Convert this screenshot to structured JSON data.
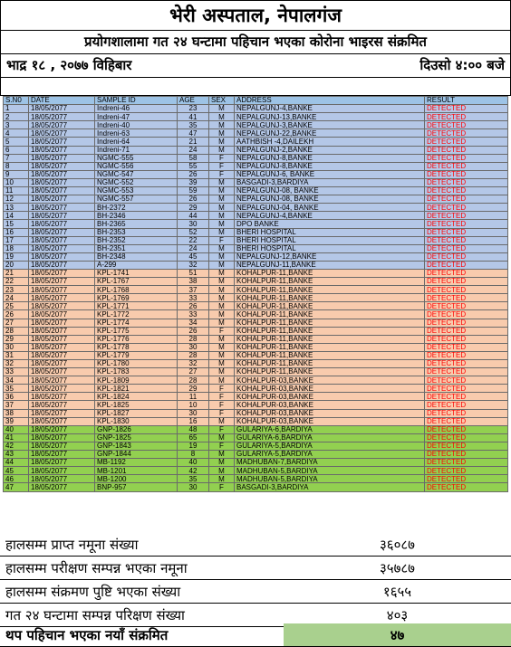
{
  "header": {
    "title": "भेरी अस्पताल, नेपालगंज",
    "subtitle": "प्रयोगशालामा गत २४ घन्टामा पहिचान भएका कोरोना भाइरस संक्रमित",
    "date": "भाद्र १८ , २०७७ विहिबार",
    "time": "दिउसो ४:०० बजे"
  },
  "table": {
    "columns": [
      "S.N0",
      "DATE",
      "SAMPLE ID",
      "AGE",
      "SEX",
      "ADDRESS",
      "RESULT"
    ],
    "rows": [
      [
        "1",
        "18/05/2077",
        "Indreni-46",
        "23",
        "M",
        "NEPALGUNJ-4,BANKE",
        "DETECTED",
        "blue"
      ],
      [
        "2",
        "18/05/2077",
        "Indreni-47",
        "41",
        "M",
        "NEPALGUNJ-13,BANKE",
        "DETECTED",
        "blue"
      ],
      [
        "3",
        "18/05/2077",
        "Indreni-40",
        "35",
        "M",
        "NEPALGUNJ-3,BANKE",
        "DETECTED",
        "blue"
      ],
      [
        "4",
        "18/05/2077",
        "Indreni-63",
        "47",
        "M",
        "NEPALGUNJ-22,BANKE",
        "DETECTED",
        "blue"
      ],
      [
        "5",
        "18/05/2077",
        "Indreni-64",
        "21",
        "M",
        "AATHBISH -4,DAILEKH",
        "DETECTED",
        "blue"
      ],
      [
        "6",
        "18/05/2077",
        "Indreni-71",
        "24",
        "M",
        "NEPALGUNJ-2,BANKE",
        "DETECTED",
        "blue"
      ],
      [
        "7",
        "18/05/2077",
        "NGMC-555",
        "58",
        "F",
        "NEPALGUNJ-8,BANKE",
        "DETECTED",
        "blue"
      ],
      [
        "8",
        "18/05/2077",
        "NGMC-556",
        "55",
        "F",
        "NEPALGUNJ-8,BANKE",
        "DETECTED",
        "blue"
      ],
      [
        "9",
        "18/05/2077",
        "NGMC-547",
        "26",
        "F",
        "NEPALGUNJ-6, BANKE",
        "DETECTED",
        "blue"
      ],
      [
        "10",
        "18/05/2077",
        "NGMC-552",
        "39",
        "M",
        "BASGADI-3,BARDIYA",
        "DETECTED",
        "blue"
      ],
      [
        "11",
        "18/05/2077",
        "NGMC-553",
        "59",
        "M",
        "NEPALGUNJ-08, BANKE",
        "DETECTED",
        "blue"
      ],
      [
        "12",
        "18/05/2077",
        "NGMC-557",
        "26",
        "M",
        "NEPALGUNJ-08, BANKE",
        "DETECTED",
        "blue"
      ],
      [
        "13",
        "18/05/2077",
        "BH-2372",
        "29",
        "M",
        "NEPALGUNJ-04, BANKE",
        "DETECTED",
        "blue"
      ],
      [
        "14",
        "18/05/2077",
        "BH-2346",
        "44",
        "M",
        "NEPALGUNJ-4,BANKE",
        "DETECTED",
        "blue"
      ],
      [
        "15",
        "18/05/2077",
        "BH-2365",
        "30",
        "M",
        "DPO BANKE",
        "DETECTED",
        "blue"
      ],
      [
        "16",
        "18/05/2077",
        "BH-2353",
        "52",
        "M",
        "BHERI HOSPITAL",
        "DETECTED",
        "blue"
      ],
      [
        "17",
        "18/05/2077",
        "BH-2352",
        "22",
        "F",
        "BHERI HOSPITAL",
        "DETECTED",
        "blue"
      ],
      [
        "18",
        "18/05/2077",
        "BH-2351",
        "24",
        "M",
        "BHERI HOSPITAL",
        "DETECTED",
        "blue"
      ],
      [
        "19",
        "18/05/2077",
        "BH-2348",
        "45",
        "M",
        "NEPALGUNJ-12,BANKE",
        "DETECTED",
        "blue"
      ],
      [
        "20",
        "18/05/2077",
        "A-299",
        "32",
        "M",
        "NEPALGUNJ-11,BANKE",
        "DETECTED",
        "blue"
      ],
      [
        "21",
        "18/05/2077",
        "KPL-1741",
        "51",
        "M",
        "KOHALPUR-11,BANKE",
        "DETECTED",
        "orange"
      ],
      [
        "22",
        "18/05/2077",
        "KPL-1767",
        "38",
        "M",
        "KOHALPUR-11,BANKE",
        "DETECTED",
        "orange"
      ],
      [
        "23",
        "18/05/2077",
        "KPL-1768",
        "37",
        "M",
        "KOHALPUR-11,BANKE",
        "DETECTED",
        "orange"
      ],
      [
        "24",
        "18/05/2077",
        "KPL-1769",
        "33",
        "M",
        "KOHALPUR-11,BANKE",
        "DETECTED",
        "orange"
      ],
      [
        "25",
        "18/05/2077",
        "KPL-1771",
        "26",
        "M",
        "KOHALPUR-11,BANKE",
        "DETECTED",
        "orange"
      ],
      [
        "26",
        "18/05/2077",
        "KPL-1772",
        "33",
        "M",
        "KOHALPUR-11,BANKE",
        "DETECTED",
        "orange"
      ],
      [
        "27",
        "18/05/2077",
        "KPL-1774",
        "34",
        "M",
        "KOHALPUR-11,BANKE",
        "DETECTED",
        "orange"
      ],
      [
        "28",
        "18/05/2077",
        "KPL-1775",
        "26",
        "F",
        "KOHALPUR-11,BANKE",
        "DETECTED",
        "orange"
      ],
      [
        "29",
        "18/05/2077",
        "KPL-1776",
        "28",
        "M",
        "KOHALPUR-11,BANKE",
        "DETECTED",
        "orange"
      ],
      [
        "30",
        "18/05/2077",
        "KPL-1778",
        "30",
        "M",
        "KOHALPUR-11,BANKE",
        "DETECTED",
        "orange"
      ],
      [
        "31",
        "18/05/2077",
        "KPL-1779",
        "28",
        "M",
        "KOHALPUR-11,BANKE",
        "DETECTED",
        "orange"
      ],
      [
        "32",
        "18/05/2077",
        "KPL-1780",
        "32",
        "M",
        "KOHALPUR-11,BANKE",
        "DETECTED",
        "orange"
      ],
      [
        "33",
        "18/05/2077",
        "KPL-1783",
        "27",
        "M",
        "KOHALPUR-11,BANKE",
        "DETECTED",
        "orange"
      ],
      [
        "34",
        "18/05/2077",
        "KPL-1809",
        "28",
        "M",
        "KOHALPUR-03,BANKE",
        "DETECTED",
        "orange"
      ],
      [
        "35",
        "18/05/2077",
        "KPL-1821",
        "29",
        "F",
        "KOHALPUR-03,BANKE",
        "DETECTED",
        "orange"
      ],
      [
        "36",
        "18/05/2077",
        "KPL-1824",
        "11",
        "F",
        "KOHALPUR-03,BANKE",
        "DETECTED",
        "orange"
      ],
      [
        "37",
        "18/05/2077",
        "KPL-1825",
        "10",
        "F",
        "KOHALPUR-03,BANKE",
        "DETECTED",
        "orange"
      ],
      [
        "38",
        "18/05/2077",
        "KPL-1827",
        "30",
        "F",
        "KOHALPUR-03,BANKE",
        "DETECTED",
        "orange"
      ],
      [
        "39",
        "18/05/2077",
        "KPL-1830",
        "16",
        "M",
        "KOHALPUR-03,BANKE",
        "DETECTED",
        "orange"
      ],
      [
        "40",
        "18/05/2077",
        "GNP-1826",
        "48",
        "F",
        "GULARIYA-6,BARDIYA",
        "DETECTED",
        "green"
      ],
      [
        "41",
        "18/05/2077",
        "GNP-1825",
        "65",
        "M",
        "GULARIYA-6,BARDIYA",
        "DETECTED",
        "green"
      ],
      [
        "42",
        "18/05/2077",
        "GNP-1843",
        "19",
        "F",
        "GULARIYA-5,BARDIYA",
        "DETECTED",
        "green"
      ],
      [
        "43",
        "18/05/2077",
        "GNP-1844",
        "8",
        "M",
        "GULARIYA-5,BARDIYA",
        "DETECTED",
        "green"
      ],
      [
        "44",
        "18/05/2077",
        "MB-1192",
        "40",
        "M",
        "MADHUBAN-7,BARDIYA",
        "DETECTED",
        "green"
      ],
      [
        "45",
        "18/05/2077",
        "MB-1201",
        "42",
        "M",
        "MADHUBAN-5,BARDIYA",
        "DETECTED",
        "green"
      ],
      [
        "46",
        "18/05/2077",
        "MB-1200",
        "35",
        "M",
        "MADHUBAN-5,BARDIYA",
        "DETECTED",
        "green"
      ],
      [
        "47",
        "18/05/2077",
        "BNP-957",
        "30",
        "F",
        "BASGADI-3,BARDIYA",
        "DETECTED",
        "green"
      ]
    ]
  },
  "summary": [
    {
      "label": "हालसम्म प्राप्त नमूना संख्या",
      "value": "३६०८७"
    },
    {
      "label": "हालसम्म परीक्षण सम्पन्न भएका नमूना",
      "value": "३५७८७"
    },
    {
      "label": "हालसम्म संक्रमण पुष्टि भएका संख्या",
      "value": "१६५५"
    },
    {
      "label": "गत २४ घन्टामा सम्पन्न परिक्षण संख्या",
      "value": "४०३"
    },
    {
      "label": "थप पहिचान भएका  नयाँ संक्रमित",
      "value": "४७"
    }
  ],
  "colors": {
    "header_row": "#9dc3e6",
    "group_blue": "#b4c7e7",
    "group_orange": "#f8cbad",
    "group_green": "#92d050",
    "result_text": "#ff0000",
    "highlight_cell": "#a9d08e"
  }
}
